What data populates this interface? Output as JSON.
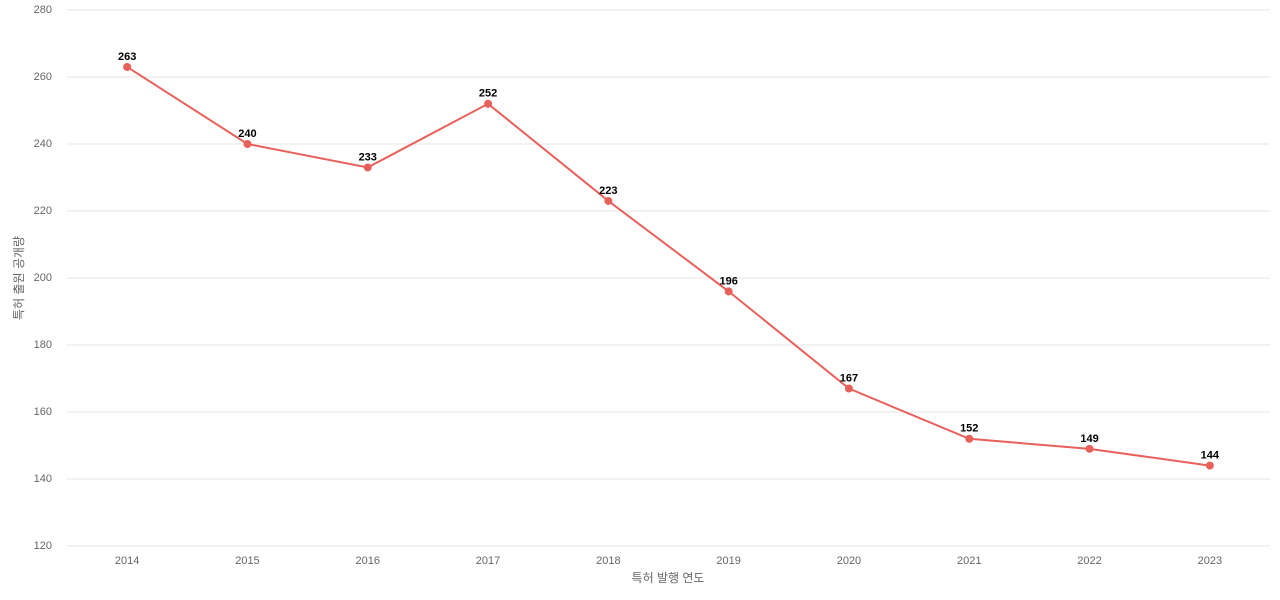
{
  "chart_data": {
    "type": "line",
    "x_label": "특허 발행 연도",
    "y_label": "특허 출원 공개량",
    "categories": [
      "2014",
      "2015",
      "2016",
      "2017",
      "2018",
      "2019",
      "2020",
      "2021",
      "2022",
      "2023"
    ],
    "values": [
      263,
      240,
      233,
      252,
      223,
      196,
      167,
      152,
      149,
      144
    ],
    "color": "#e8605a",
    "ylim": [
      120,
      280
    ],
    "yticks": [
      120,
      140,
      160,
      180,
      200,
      220,
      240,
      260,
      280
    ],
    "grid": true
  }
}
